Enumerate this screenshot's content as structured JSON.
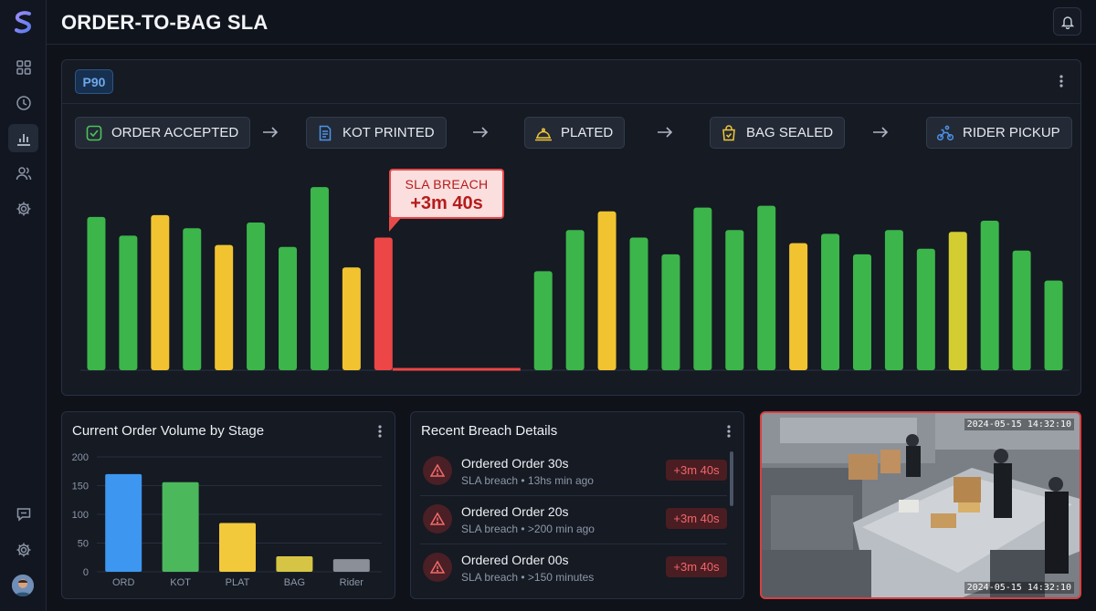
{
  "header": {
    "title": "ORDER-TO-BAG SLA"
  },
  "sidebar": {
    "items": [
      {
        "name": "dashboard",
        "icon": "grid-icon"
      },
      {
        "name": "history",
        "icon": "clock-icon"
      },
      {
        "name": "analytics",
        "icon": "bar-chart-icon",
        "active": true
      },
      {
        "name": "users",
        "icon": "users-icon"
      },
      {
        "name": "settings",
        "icon": "gear-icon"
      }
    ],
    "bottom_items": [
      {
        "name": "feedback",
        "icon": "message-icon"
      },
      {
        "name": "preferences",
        "icon": "gear-icon"
      }
    ]
  },
  "main_panel": {
    "percentile_label": "P90",
    "stages": [
      {
        "label": "ORDER ACCEPTED",
        "icon": "check-square-icon",
        "icon_color": "#4cc35c"
      },
      {
        "label": "KOT PRINTED",
        "icon": "receipt-icon",
        "icon_color": "#4c93ea"
      },
      {
        "label": "PLATED",
        "icon": "cloche-icon",
        "icon_color": "#f0c63a"
      },
      {
        "label": "BAG SEALED",
        "icon": "bag-icon",
        "icon_color": "#f0c63a"
      },
      {
        "label": "RIDER PICKUP",
        "icon": "rider-icon",
        "icon_color": "#4c93ea"
      }
    ],
    "breach_tooltip": {
      "title": "SLA BREACH",
      "value": "+3m 40s"
    }
  },
  "chart_data": [
    {
      "type": "bar",
      "title": "",
      "xlabel": "",
      "ylabel": "",
      "grid": false,
      "legend": "none",
      "values": [
        82,
        72,
        83,
        76,
        67,
        79,
        66,
        98,
        55,
        71,
        53,
        75,
        85,
        71,
        62,
        87,
        75,
        88,
        68,
        73,
        62,
        75,
        65,
        74,
        80,
        64,
        48
      ],
      "colors": [
        "#3cb54a",
        "#3cb54a",
        "#f2c330",
        "#3cb54a",
        "#f2c330",
        "#3cb54a",
        "#3cb54a",
        "#3cb54a",
        "#f2c330",
        "#ec4646",
        "#3cb54a",
        "#3cb54a",
        "#f2c330",
        "#3cb54a",
        "#3cb54a",
        "#3cb54a",
        "#3cb54a",
        "#3cb54a",
        "#f2c330",
        "#3cb54a",
        "#3cb54a",
        "#3cb54a",
        "#3cb54a",
        "#d4cd32",
        "#3cb54a",
        "#3cb54a",
        "#3cb54a"
      ],
      "breach_index": 9,
      "ylim": [
        0,
        100
      ],
      "colors_meaning": {
        "green": "#3cb54a",
        "yellow": "#f2c330",
        "red": "#ec4646"
      }
    },
    {
      "type": "bar",
      "title": "Current Order Volume by Stage",
      "categories": [
        "ORD",
        "KOT",
        "PLAT",
        "BAG",
        "Rider"
      ],
      "values": [
        170,
        156,
        85,
        27,
        22
      ],
      "colors": [
        "#3d97f0",
        "#4cb85c",
        "#f2c93a",
        "#d6c544",
        "#8a8f98"
      ],
      "yticks": [
        0,
        50,
        100,
        150,
        200
      ],
      "ylim": [
        0,
        200
      ],
      "grid": true
    }
  ],
  "breaches": {
    "title": "Recent Breach Details",
    "items": [
      {
        "title": "Ordered Order 30s",
        "subtitle": "SLA breach • 13hs min ago",
        "badge": "+3m 40s"
      },
      {
        "title": "Ordered Order 20s",
        "subtitle": "SLA breach • >200 min ago",
        "badge": "+3m 40s"
      },
      {
        "title": "Ordered Order 00s",
        "subtitle": "SLA breach • >150 minutes",
        "badge": "+3m 40s"
      }
    ]
  },
  "camera": {
    "timestamp_top": "2024-05-15 14:32:10",
    "timestamp_bottom": "2024-05-15 14:32:10"
  }
}
